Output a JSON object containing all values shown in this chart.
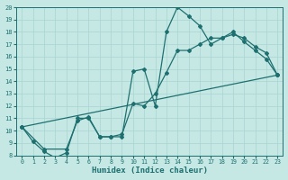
{
  "xlabel": "Humidex (Indice chaleur)",
  "xlim": [
    -0.5,
    23.5
  ],
  "ylim": [
    8,
    20
  ],
  "xticks": [
    0,
    1,
    2,
    3,
    4,
    5,
    6,
    7,
    8,
    9,
    10,
    11,
    12,
    13,
    14,
    15,
    16,
    17,
    18,
    19,
    20,
    21,
    22,
    23
  ],
  "yticks": [
    8,
    9,
    10,
    11,
    12,
    13,
    14,
    15,
    16,
    17,
    18,
    19,
    20
  ],
  "bg_color": "#c6e8e4",
  "line_color": "#1e7070",
  "grid_color": "#a8d4d0",
  "series1_x": [
    0,
    1,
    2,
    3,
    4,
    5,
    6,
    7,
    8,
    9,
    10,
    11,
    12,
    13,
    14,
    15,
    16,
    17,
    18,
    19,
    20,
    21,
    22,
    23
  ],
  "series1_y": [
    10.3,
    9.1,
    8.3,
    7.8,
    8.2,
    11.0,
    11.0,
    9.5,
    9.5,
    9.5,
    14.8,
    15.0,
    12.0,
    18.0,
    20.0,
    19.3,
    18.5,
    17.0,
    17.5,
    18.0,
    17.2,
    16.5,
    15.8,
    14.5
  ],
  "series2_x": [
    0,
    2,
    4,
    5,
    6,
    7,
    8,
    9,
    10,
    11,
    12,
    13,
    14,
    15,
    16,
    17,
    18,
    19,
    20,
    21,
    22,
    23
  ],
  "series2_y": [
    10.3,
    8.5,
    8.5,
    10.8,
    11.1,
    9.5,
    9.5,
    9.7,
    12.2,
    12.0,
    13.0,
    14.7,
    16.5,
    16.5,
    17.0,
    17.5,
    17.5,
    17.8,
    17.5,
    16.8,
    16.3,
    14.5
  ],
  "series3_x": [
    0,
    23
  ],
  "series3_y": [
    10.3,
    14.5
  ],
  "marker": "D",
  "markersize": 2.0,
  "linewidth": 0.9
}
